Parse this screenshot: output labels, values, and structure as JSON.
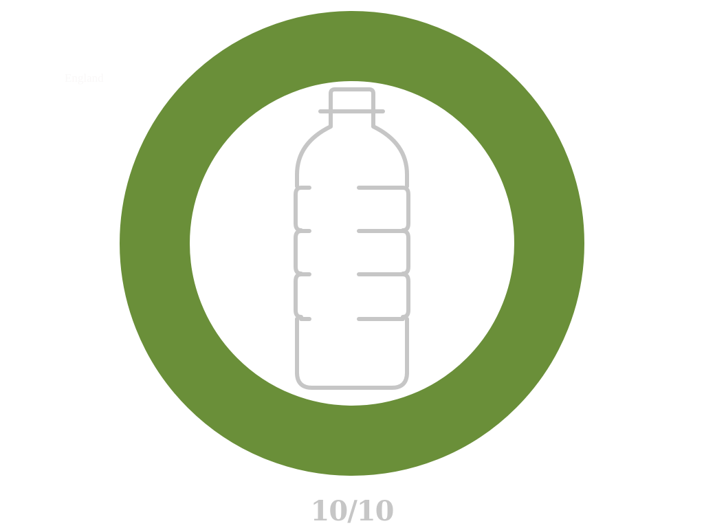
{
  "label": {
    "text": "England"
  },
  "badge": {
    "score": 10,
    "score_max": 10,
    "score_text": "10/10",
    "ring_color": "#6a8f39",
    "icon": "plastic-bottle-icon",
    "icon_color": "#c6c6c6"
  }
}
